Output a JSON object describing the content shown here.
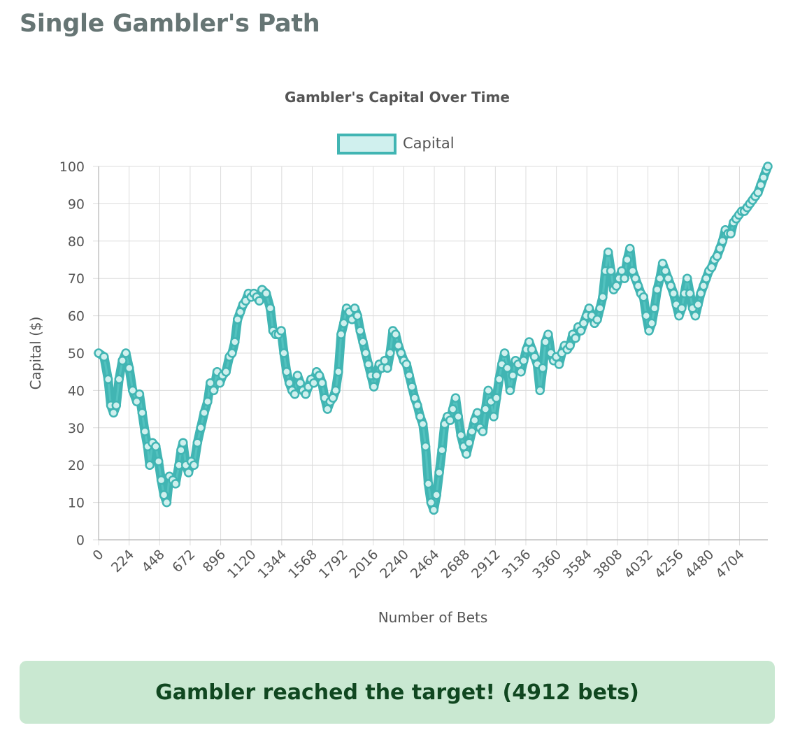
{
  "page": {
    "title": "Single Gambler's Path",
    "result_message": "Gambler reached the target! (4912 bets)"
  },
  "chart_data": {
    "type": "line",
    "title": "Gambler's Capital Over Time",
    "xlabel": "Number of Bets",
    "ylabel": "Capital ($)",
    "ylim": [
      0,
      100
    ],
    "y_ticks": [
      0,
      10,
      20,
      30,
      40,
      50,
      60,
      70,
      80,
      90,
      100
    ],
    "xlim": [
      0,
      4912
    ],
    "x_ticks": [
      0,
      224,
      448,
      672,
      896,
      1120,
      1344,
      1568,
      1792,
      2016,
      2240,
      2464,
      2688,
      2912,
      3136,
      3360,
      3584,
      3808,
      4032,
      4256,
      4480,
      4704
    ],
    "grid": true,
    "legend": "top-center",
    "series": [
      {
        "name": "Capital",
        "color": "#41b5b3",
        "fill": "#d0f0ee",
        "points": [
          [
            0,
            50
          ],
          [
            40,
            49
          ],
          [
            70,
            43
          ],
          [
            90,
            36
          ],
          [
            110,
            34
          ],
          [
            130,
            36
          ],
          [
            150,
            43
          ],
          [
            175,
            48
          ],
          [
            200,
            50
          ],
          [
            225,
            46
          ],
          [
            250,
            40
          ],
          [
            280,
            37
          ],
          [
            300,
            39
          ],
          [
            320,
            34
          ],
          [
            340,
            29
          ],
          [
            360,
            25
          ],
          [
            375,
            20
          ],
          [
            395,
            26
          ],
          [
            420,
            25
          ],
          [
            440,
            21
          ],
          [
            460,
            16
          ],
          [
            480,
            12
          ],
          [
            500,
            10
          ],
          [
            520,
            17
          ],
          [
            545,
            16
          ],
          [
            565,
            15
          ],
          [
            590,
            20
          ],
          [
            605,
            24
          ],
          [
            620,
            26
          ],
          [
            640,
            20
          ],
          [
            660,
            18
          ],
          [
            680,
            21
          ],
          [
            700,
            20
          ],
          [
            725,
            26
          ],
          [
            750,
            30
          ],
          [
            775,
            34
          ],
          [
            800,
            37
          ],
          [
            820,
            42
          ],
          [
            845,
            40
          ],
          [
            870,
            45
          ],
          [
            890,
            42
          ],
          [
            910,
            44
          ],
          [
            935,
            45
          ],
          [
            960,
            49
          ],
          [
            980,
            50
          ],
          [
            1000,
            53
          ],
          [
            1020,
            59
          ],
          [
            1040,
            61
          ],
          [
            1060,
            63
          ],
          [
            1080,
            64
          ],
          [
            1100,
            66
          ],
          [
            1120,
            65
          ],
          [
            1140,
            66
          ],
          [
            1160,
            65
          ],
          [
            1180,
            64
          ],
          [
            1200,
            67
          ],
          [
            1230,
            66
          ],
          [
            1260,
            62
          ],
          [
            1280,
            56
          ],
          [
            1300,
            55
          ],
          [
            1320,
            55
          ],
          [
            1340,
            56
          ],
          [
            1360,
            50
          ],
          [
            1380,
            45
          ],
          [
            1400,
            42
          ],
          [
            1420,
            40
          ],
          [
            1440,
            39
          ],
          [
            1460,
            44
          ],
          [
            1480,
            42
          ],
          [
            1500,
            40
          ],
          [
            1520,
            39
          ],
          [
            1540,
            41
          ],
          [
            1560,
            43
          ],
          [
            1580,
            42
          ],
          [
            1600,
            45
          ],
          [
            1620,
            44
          ],
          [
            1640,
            42
          ],
          [
            1660,
            38
          ],
          [
            1680,
            35
          ],
          [
            1700,
            37
          ],
          [
            1720,
            38
          ],
          [
            1740,
            40
          ],
          [
            1760,
            45
          ],
          [
            1780,
            55
          ],
          [
            1800,
            58
          ],
          [
            1820,
            62
          ],
          [
            1840,
            61
          ],
          [
            1860,
            59
          ],
          [
            1880,
            62
          ],
          [
            1900,
            60
          ],
          [
            1920,
            56
          ],
          [
            1940,
            53
          ],
          [
            1960,
            50
          ],
          [
            1980,
            47
          ],
          [
            2000,
            44
          ],
          [
            2020,
            41
          ],
          [
            2040,
            44
          ],
          [
            2060,
            47
          ],
          [
            2080,
            46
          ],
          [
            2100,
            48
          ],
          [
            2120,
            46
          ],
          [
            2140,
            50
          ],
          [
            2160,
            56
          ],
          [
            2180,
            55
          ],
          [
            2200,
            52
          ],
          [
            2220,
            50
          ],
          [
            2240,
            48
          ],
          [
            2260,
            47
          ],
          [
            2280,
            44
          ],
          [
            2300,
            41
          ],
          [
            2320,
            38
          ],
          [
            2340,
            36
          ],
          [
            2360,
            33
          ],
          [
            2380,
            31
          ],
          [
            2400,
            25
          ],
          [
            2420,
            15
          ],
          [
            2440,
            10
          ],
          [
            2460,
            8
          ],
          [
            2480,
            12
          ],
          [
            2500,
            18
          ],
          [
            2520,
            24
          ],
          [
            2540,
            31
          ],
          [
            2560,
            33
          ],
          [
            2580,
            32
          ],
          [
            2600,
            35
          ],
          [
            2620,
            38
          ],
          [
            2640,
            33
          ],
          [
            2660,
            28
          ],
          [
            2680,
            25
          ],
          [
            2700,
            23
          ],
          [
            2720,
            26
          ],
          [
            2740,
            29
          ],
          [
            2760,
            32
          ],
          [
            2780,
            34
          ],
          [
            2800,
            30
          ],
          [
            2820,
            29
          ],
          [
            2840,
            35
          ],
          [
            2860,
            40
          ],
          [
            2880,
            37
          ],
          [
            2900,
            33
          ],
          [
            2920,
            38
          ],
          [
            2940,
            43
          ],
          [
            2960,
            47
          ],
          [
            2980,
            50
          ],
          [
            3000,
            46
          ],
          [
            3020,
            40
          ],
          [
            3040,
            44
          ],
          [
            3060,
            48
          ],
          [
            3080,
            47
          ],
          [
            3100,
            45
          ],
          [
            3120,
            48
          ],
          [
            3140,
            51
          ],
          [
            3160,
            53
          ],
          [
            3180,
            51
          ],
          [
            3200,
            49
          ],
          [
            3220,
            47
          ],
          [
            3240,
            40
          ],
          [
            3260,
            46
          ],
          [
            3280,
            53
          ],
          [
            3300,
            55
          ],
          [
            3320,
            50
          ],
          [
            3340,
            48
          ],
          [
            3360,
            49
          ],
          [
            3380,
            47
          ],
          [
            3400,
            50
          ],
          [
            3420,
            52
          ],
          [
            3440,
            51
          ],
          [
            3460,
            52
          ],
          [
            3480,
            55
          ],
          [
            3500,
            54
          ],
          [
            3520,
            57
          ],
          [
            3540,
            56
          ],
          [
            3560,
            58
          ],
          [
            3580,
            60
          ],
          [
            3600,
            62
          ],
          [
            3620,
            60
          ],
          [
            3640,
            58
          ],
          [
            3660,
            59
          ],
          [
            3680,
            62
          ],
          [
            3700,
            65
          ],
          [
            3720,
            72
          ],
          [
            3740,
            77
          ],
          [
            3760,
            72
          ],
          [
            3780,
            67
          ],
          [
            3800,
            68
          ],
          [
            3820,
            70
          ],
          [
            3840,
            72
          ],
          [
            3860,
            70
          ],
          [
            3880,
            75
          ],
          [
            3900,
            78
          ],
          [
            3920,
            72
          ],
          [
            3940,
            70
          ],
          [
            3960,
            68
          ],
          [
            3980,
            66
          ],
          [
            4000,
            65
          ],
          [
            4020,
            60
          ],
          [
            4040,
            56
          ],
          [
            4060,
            58
          ],
          [
            4080,
            62
          ],
          [
            4100,
            67
          ],
          [
            4120,
            70
          ],
          [
            4140,
            74
          ],
          [
            4160,
            72
          ],
          [
            4180,
            70
          ],
          [
            4200,
            68
          ],
          [
            4220,
            66
          ],
          [
            4240,
            63
          ],
          [
            4260,
            60
          ],
          [
            4280,
            62
          ],
          [
            4300,
            66
          ],
          [
            4320,
            70
          ],
          [
            4340,
            66
          ],
          [
            4360,
            62
          ],
          [
            4380,
            60
          ],
          [
            4400,
            63
          ],
          [
            4420,
            66
          ],
          [
            4440,
            68
          ],
          [
            4460,
            70
          ],
          [
            4480,
            72
          ],
          [
            4500,
            73
          ],
          [
            4520,
            75
          ],
          [
            4540,
            76
          ],
          [
            4560,
            78
          ],
          [
            4580,
            80
          ],
          [
            4600,
            83
          ],
          [
            4620,
            82
          ],
          [
            4640,
            82
          ],
          [
            4660,
            85
          ],
          [
            4680,
            86
          ],
          [
            4700,
            87
          ],
          [
            4720,
            88
          ],
          [
            4740,
            88
          ],
          [
            4760,
            89
          ],
          [
            4780,
            90
          ],
          [
            4800,
            91
          ],
          [
            4820,
            92
          ],
          [
            4840,
            93
          ],
          [
            4860,
            95
          ],
          [
            4880,
            97
          ],
          [
            4900,
            99
          ],
          [
            4912,
            100
          ]
        ]
      }
    ]
  }
}
